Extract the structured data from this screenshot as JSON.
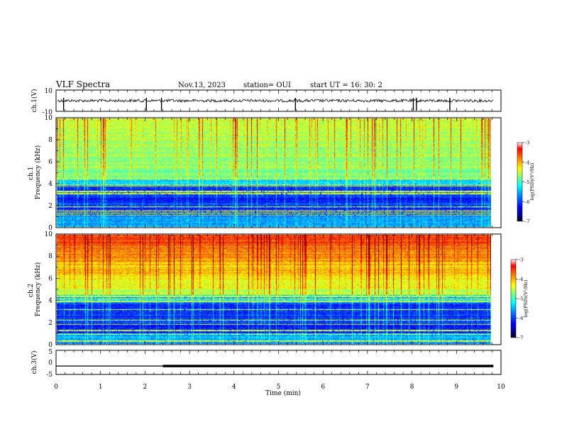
{
  "header": {
    "title": "VLF Spectra",
    "date": "Nov.13, 2023",
    "station": "station= OUI",
    "start": "start  UT =   16: 30: 2"
  },
  "colors": {
    "jet": [
      "#00007f",
      "#0000ff",
      "#007fff",
      "#00ffff",
      "#7fff7f",
      "#ffff00",
      "#ff7f00",
      "#ff0000",
      "#7f0000"
    ]
  },
  "chart_data": [
    {
      "type": "line",
      "panel": "ch1-waveform",
      "ylabel": "ch.1(V)",
      "ylim": [
        -10,
        10
      ],
      "yticks": [
        "10",
        "-10"
      ],
      "xlim": [
        0,
        10
      ],
      "baseline": 0,
      "spikes_min": [
        0.17,
        2.03,
        2.37,
        5.38,
        8.03,
        8.1,
        8.85
      ]
    },
    {
      "type": "heatmap",
      "panel": "ch1-spectrogram",
      "ylabel": "ch.1\nFrequency (kHz)",
      "ylim": [
        0,
        10
      ],
      "yticks": [
        "0",
        "2",
        "4",
        "6",
        "8",
        "10"
      ],
      "xlim": [
        0,
        9.83
      ],
      "colorbar": {
        "label": "log(PSD)(V²/Hz)",
        "range": [
          -7,
          -3
        ],
        "ticks": [
          "-3",
          "-4",
          "-5",
          "-6",
          "-7"
        ]
      }
    },
    {
      "type": "heatmap",
      "panel": "ch2-spectrogram",
      "ylabel": "ch.2\nFrequency (kHz)",
      "ylim": [
        0,
        10
      ],
      "yticks": [
        "0",
        "2",
        "4",
        "6",
        "8",
        "10"
      ],
      "xlim": [
        0,
        9.83
      ],
      "colorbar": {
        "label": "log(PSD)(V²/Hz)",
        "range": [
          -7,
          -3
        ],
        "ticks": [
          "-3",
          "-4",
          "-5",
          "-6",
          "-7"
        ]
      }
    },
    {
      "type": "line",
      "panel": "ch3-level",
      "ylabel": "ch.3(V)",
      "ylim": [
        -5,
        5
      ],
      "yticks": [
        "5",
        "0",
        "-5"
      ],
      "xlim": [
        0,
        10
      ],
      "level_v": -1.5,
      "thick_from_min": 2.4
    }
  ],
  "xaxis": {
    "label": "Time (min)",
    "ticks": [
      "0",
      "1",
      "2",
      "3",
      "4",
      "5",
      "6",
      "7",
      "8",
      "9",
      "10"
    ]
  },
  "cb_tick_values": [
    -3,
    -4,
    -5,
    -6,
    -7
  ]
}
